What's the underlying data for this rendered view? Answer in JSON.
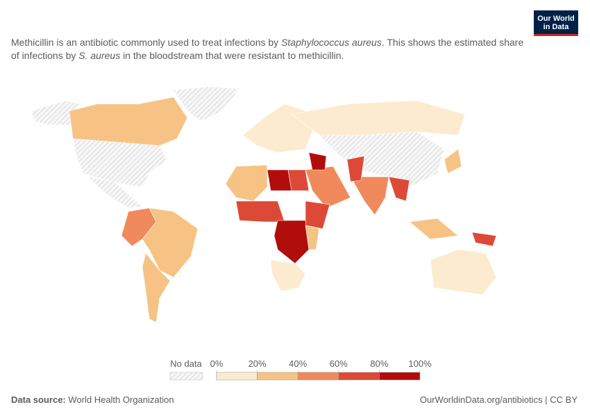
{
  "header": {
    "logo": [
      "Our World",
      "in Data"
    ],
    "subtitle": [
      "Methicillin is an antibiotic commonly used to treat infections by ",
      "Staphylococcus aureus",
      ". This shows the estimated share of infections by ",
      "S. aureus",
      " in the bloodstream that were resistant to methicillin."
    ]
  },
  "legend": {
    "no_data": "No data",
    "ticks": [
      {
        "value": 0,
        "label": "0%"
      },
      {
        "value": 20,
        "label": "20%"
      },
      {
        "value": 40,
        "label": "40%"
      },
      {
        "value": 60,
        "label": "60%"
      },
      {
        "value": 80,
        "label": "80%"
      },
      {
        "value": 100,
        "label": "100%"
      }
    ],
    "colors": [
      "#fdebcf",
      "#f6c385",
      "#f08a5c",
      "#dc4a37",
      "#b10d0d"
    ]
  },
  "footer": {
    "source_label": "Data source:",
    "source": "World Health Organization",
    "url": "OurWorldinData.org/antibiotics | CC BY"
  }
}
